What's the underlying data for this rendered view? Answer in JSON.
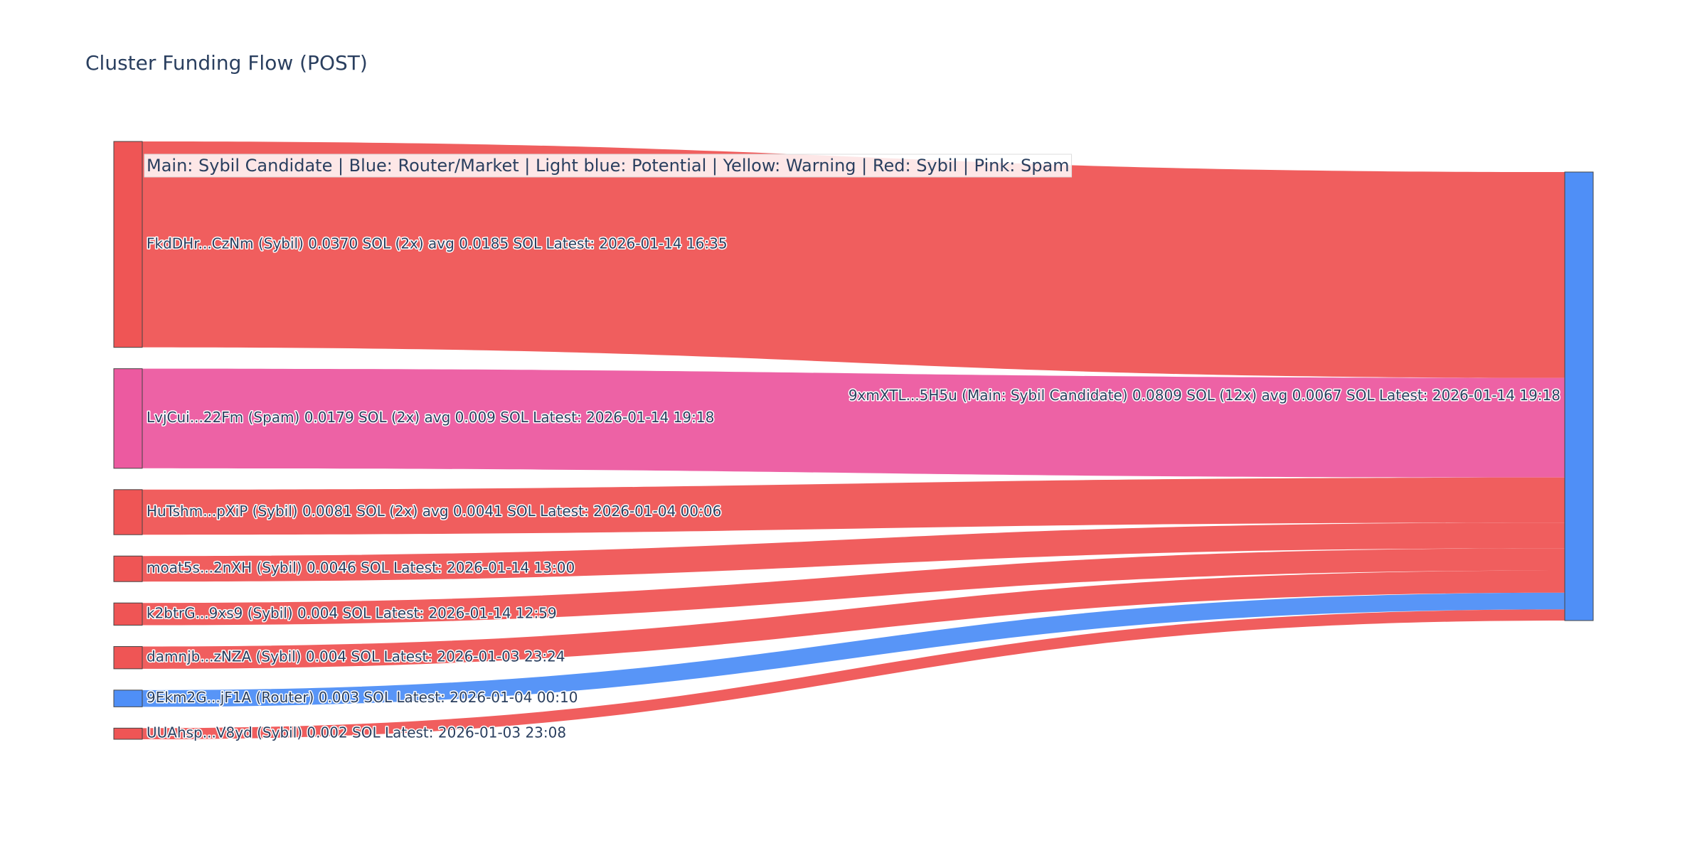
{
  "chart_data": {
    "type": "sankey",
    "title": "Cluster Funding Flow (POST)",
    "annotation": "Main: Sybil Candidate  |  Blue: Router/Market | Light blue: Potential | Yellow: Warning | Red: Sybil | Pink: Spam",
    "sources": [
      {
        "label": "FkdDHr...CzNm (Sybil) 0.0370 SOL (2x) avg 0.0185 SOL Latest: 2026-01-14 16:35",
        "value": 0.037,
        "color": "#ef5555"
      },
      {
        "label": "LvjCui...22Fm (Spam) 0.0179 SOL (2x) avg 0.009 SOL Latest: 2026-01-14 19:18",
        "value": 0.0179,
        "color": "#ec5aa0"
      },
      {
        "label": "HuTshm...pXiP (Sybil) 0.0081 SOL (2x) avg 0.0041 SOL Latest: 2026-01-04 00:06",
        "value": 0.0081,
        "color": "#ef5555"
      },
      {
        "label": "moat5s...2nXH (Sybil) 0.0046 SOL Latest: 2026-01-14 13:00",
        "value": 0.0046,
        "color": "#ef5555"
      },
      {
        "label": "k2btrG...9xs9 (Sybil) 0.004 SOL Latest: 2026-01-14 12:59",
        "value": 0.004,
        "color": "#ef5555"
      },
      {
        "label": "damnjb...zNZA (Sybil) 0.004 SOL Latest: 2026-01-03 23:24",
        "value": 0.004,
        "color": "#ef5555"
      },
      {
        "label": "9Ekm2G...jF1A (Router) 0.003 SOL Latest: 2026-01-04 00:10",
        "value": 0.003,
        "color": "#4f8ff7"
      },
      {
        "label": "UUAhsp...V8yd (Sybil) 0.002 SOL Latest: 2026-01-03 23:08",
        "value": 0.002,
        "color": "#ef5555"
      }
    ],
    "target": {
      "label": "9xmXTL...5H5u (Main: Sybil Candidate) 0.0809 SOL (12x) avg 0.0067 SOL Latest: 2026-01-14 19:18",
      "color": "#4f8ff7"
    }
  }
}
